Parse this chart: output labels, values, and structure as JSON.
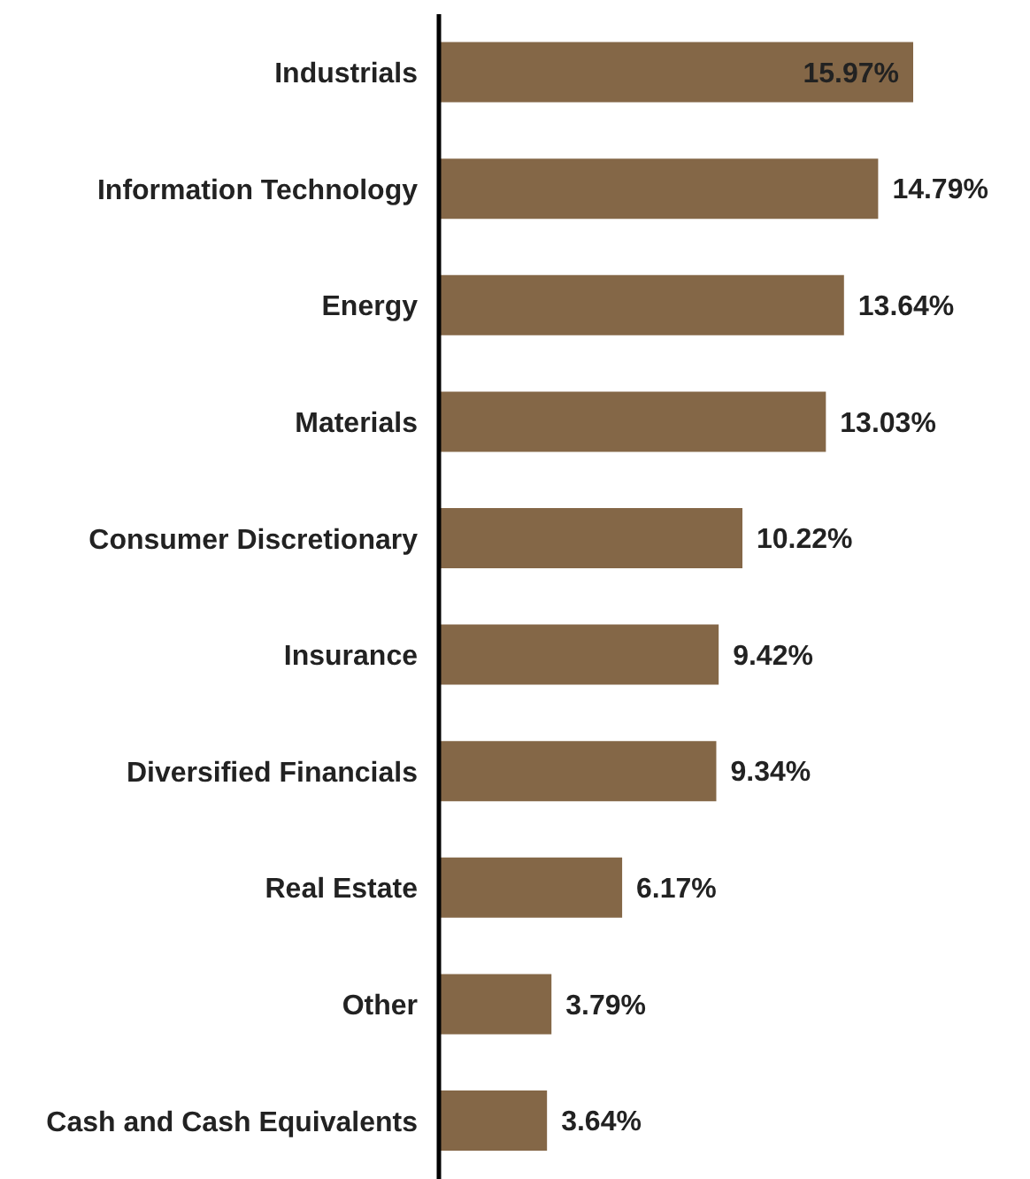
{
  "chart_data": {
    "type": "bar",
    "orientation": "horizontal",
    "categories": [
      "Industrials",
      "Information Technology",
      "Energy",
      "Materials",
      "Consumer Discretionary",
      "Insurance",
      "Diversified Financials",
      "Real Estate",
      "Other",
      "Cash and Cash Equivalents"
    ],
    "values": [
      15.97,
      14.79,
      13.64,
      13.03,
      10.22,
      9.42,
      9.34,
      6.17,
      3.79,
      3.64
    ],
    "value_labels": [
      "15.97%",
      "14.79%",
      "13.64%",
      "13.03%",
      "10.22%",
      "9.42%",
      "9.34%",
      "6.17%",
      "3.79%",
      "3.64%"
    ],
    "color": "#846747",
    "grid": false,
    "legend": false,
    "tick_labels": "y"
  }
}
